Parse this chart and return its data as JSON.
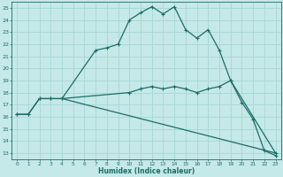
{
  "xlabel": "Humidex (Indice chaleur)",
  "xlim": [
    0,
    23
  ],
  "ylim": [
    13,
    25
  ],
  "xticks": [
    0,
    1,
    2,
    3,
    4,
    5,
    6,
    7,
    8,
    9,
    10,
    11,
    12,
    13,
    14,
    15,
    16,
    17,
    18,
    19,
    20,
    21,
    22,
    23
  ],
  "yticks": [
    13,
    14,
    15,
    16,
    17,
    18,
    19,
    20,
    21,
    22,
    23,
    24,
    25
  ],
  "bg_color": "#c5e8e8",
  "grid_color": "#a8d5d5",
  "line_color": "#1a6e68",
  "line1_x": [
    0,
    1,
    2,
    3,
    4,
    7,
    8,
    9,
    10,
    11,
    12,
    13,
    14,
    15,
    16,
    17,
    18,
    19,
    20,
    21,
    22,
    23
  ],
  "line1_y": [
    16.2,
    16.2,
    17.5,
    17.5,
    17.5,
    21.5,
    21.7,
    22.0,
    24.0,
    24.6,
    25.1,
    24.5,
    25.1,
    23.2,
    22.5,
    23.2,
    21.5,
    19.0,
    17.2,
    15.8,
    13.2,
    12.8
  ],
  "line2_x": [
    0,
    1,
    2,
    3,
    4,
    10,
    11,
    12,
    13,
    14,
    15,
    16,
    17,
    18,
    19,
    23
  ],
  "line2_y": [
    16.2,
    16.2,
    17.5,
    17.5,
    17.5,
    18.0,
    18.3,
    18.5,
    18.3,
    18.5,
    18.3,
    18.0,
    18.3,
    18.5,
    19.0,
    13.0
  ],
  "line3_x": [
    4,
    23
  ],
  "line3_y": [
    17.5,
    13.0
  ]
}
